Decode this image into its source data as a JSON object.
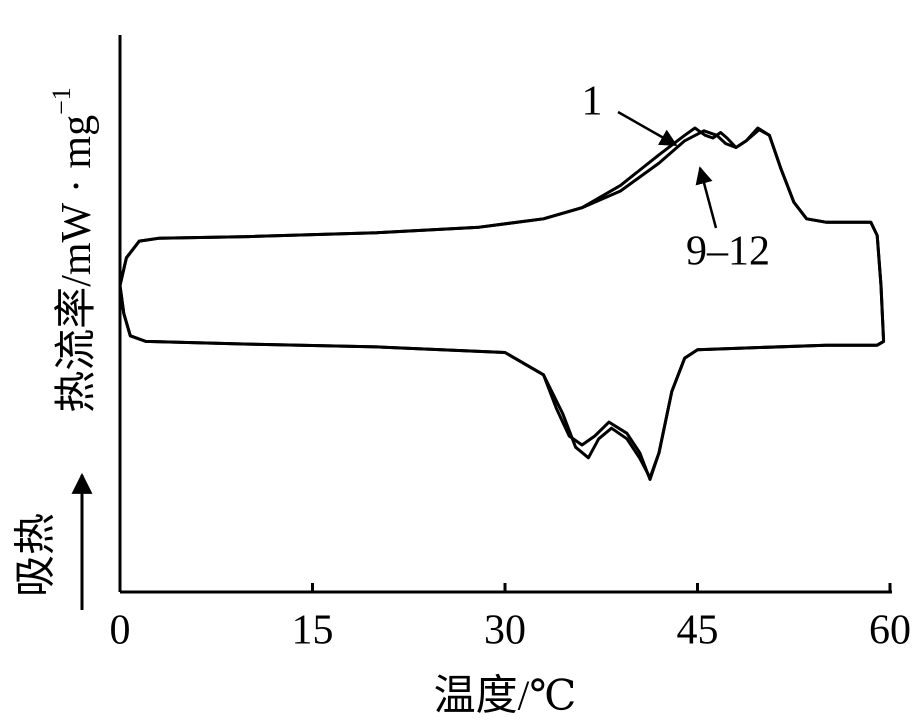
{
  "chart_data": {
    "type": "line",
    "x_label": "温度/℃",
    "y_label": "热流率/mW · mg",
    "y_label_sup": "−1",
    "endo_label": "吸热",
    "xlim": [
      0,
      60
    ],
    "xticks": [
      0,
      15,
      30,
      45,
      60
    ],
    "ylim": [
      0,
      10
    ],
    "series": [
      {
        "name": "1",
        "color": "#000000",
        "x": [
          0,
          0.5,
          1.5,
          3,
          10,
          20,
          28,
          33,
          36,
          39,
          42,
          44,
          44.8,
          45.6,
          46.2,
          46.8,
          47.3,
          48,
          48.8,
          49.7,
          50.6,
          51.5,
          52.5,
          53.5,
          55,
          58.5,
          59,
          59.3,
          59.5,
          59,
          55,
          45,
          44,
          43,
          42,
          41.3,
          40.5,
          39.5,
          38.1,
          37,
          36,
          35,
          34,
          33,
          30,
          20,
          10,
          2,
          0.8,
          0.3,
          0
        ],
        "values": [
          5.5,
          6.0,
          6.3,
          6.35,
          6.38,
          6.45,
          6.55,
          6.7,
          6.9,
          7.3,
          7.85,
          8.2,
          8.33,
          8.2,
          8.15,
          8.25,
          8.15,
          7.98,
          8.1,
          8.33,
          8.2,
          7.6,
          7.0,
          6.7,
          6.64,
          6.64,
          6.4,
          5.5,
          4.5,
          4.43,
          4.43,
          4.35,
          4.2,
          3.6,
          2.5,
          2.02,
          2.5,
          2.85,
          3.05,
          2.8,
          2.64,
          2.8,
          3.3,
          3.9,
          4.3,
          4.4,
          4.45,
          4.5,
          4.6,
          5.0,
          5.5
        ]
      },
      {
        "name": "9–12",
        "color": "#000000",
        "x": [
          0,
          0.5,
          1.5,
          3,
          10,
          20,
          28,
          33,
          36,
          39,
          42,
          44,
          45.5,
          46.5,
          47.2,
          48,
          48.8,
          49.8,
          50.6,
          51.5,
          52.5,
          53.5,
          55,
          58.5,
          59,
          59.3,
          59.5,
          59,
          55,
          45,
          44,
          43,
          42,
          41.3,
          40.5,
          39.5,
          38.3,
          37.3,
          36.5,
          35.5,
          34.5,
          33,
          30,
          20,
          10,
          2,
          0.8,
          0.3,
          0
        ],
        "values": [
          5.5,
          6.0,
          6.3,
          6.35,
          6.38,
          6.45,
          6.55,
          6.7,
          6.9,
          7.2,
          7.7,
          8.1,
          8.28,
          8.2,
          8.05,
          7.98,
          8.1,
          8.3,
          8.2,
          7.6,
          7.0,
          6.7,
          6.64,
          6.64,
          6.4,
          5.5,
          4.5,
          4.43,
          4.43,
          4.35,
          4.2,
          3.6,
          2.5,
          2.05,
          2.4,
          2.75,
          2.94,
          2.75,
          2.41,
          2.6,
          3.2,
          3.9,
          4.3,
          4.4,
          4.45,
          4.5,
          4.6,
          5.0,
          5.5
        ]
      }
    ]
  }
}
